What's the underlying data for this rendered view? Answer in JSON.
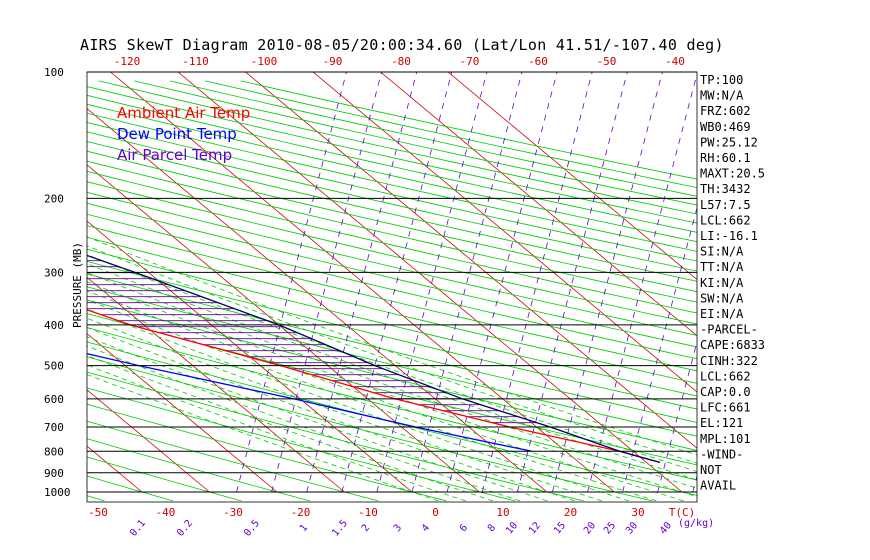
{
  "title": "AIRS SkewT Diagram 2010-08-05/20:00:34.60 (Lat/Lon 41.51/-107.40 deg)",
  "colors": {
    "ambient": "#ff0000",
    "dewpoint": "#0000ff",
    "parcel": "#000066",
    "isotherm": "#cc0000",
    "dry_adiabat": "#00cc00",
    "moist_adiabat": "#00cc00",
    "mixing_ratio": "#6600cc",
    "cape_hatch": "#660099"
  },
  "chart_data": {
    "type": "line",
    "title": "AIRS SkewT Diagram 2010-08-05/20:00:34.60 (Lat/Lon 41.51/-107.40 deg)",
    "ylabel": "PRESSURE (MB)",
    "xlabel": "T(C)",
    "ylim": [
      1000,
      100
    ],
    "y_scale": "log",
    "pressure_ticks": [
      100,
      200,
      300,
      400,
      500,
      600,
      700,
      800,
      900,
      1000
    ],
    "pressure_tick_labels": [
      "100",
      "200",
      "300",
      "400",
      "500",
      "600",
      "700",
      "800",
      "900",
      "1000"
    ],
    "top_temp_ticks": [
      "-120",
      "-110",
      "-100",
      "-90",
      "-80",
      "-70",
      "-60",
      "-50",
      "-40"
    ],
    "bottom_temp_ticks": [
      "-50",
      "-40",
      "-30",
      "-20",
      "-10",
      "0",
      "10",
      "20",
      "30"
    ],
    "mixing_ratio_labels": [
      "0.1",
      "0.2",
      "0.5",
      "1",
      "1.5",
      "2",
      "3",
      "4",
      "6",
      "8",
      "10",
      "12",
      "15",
      "20",
      "25",
      "30",
      "40"
    ],
    "mixing_ratio_unit": "(g/kg)",
    "legend": [
      "Ambient Air Temp",
      "Dew Point Temp",
      "Air Parcel Temp"
    ],
    "legend_position": "top-left",
    "series": [
      {
        "name": "Ambient Air Temp",
        "points": [
          [
            100,
            -61.0
          ],
          [
            130,
            -66.5
          ],
          [
            150,
            -67.0
          ],
          [
            200,
            -62.0
          ],
          [
            250,
            -53.0
          ],
          [
            300,
            -45.0
          ],
          [
            400,
            -32.0
          ],
          [
            500,
            -17.0
          ],
          [
            600,
            -6.0
          ],
          [
            700,
            6.0
          ],
          [
            800,
            18.0
          ],
          [
            850,
            22.0
          ]
        ]
      },
      {
        "name": "Dew Point Temp",
        "points": [
          [
            100,
            -92.0
          ],
          [
            150,
            -92.0
          ],
          [
            200,
            -86.0
          ],
          [
            300,
            -70.0
          ],
          [
            400,
            -57.0
          ],
          [
            500,
            -38.0
          ],
          [
            600,
            -21.0
          ],
          [
            700,
            -8.0
          ],
          [
            800,
            5.0
          ]
        ]
      },
      {
        "name": "Air Parcel Temp",
        "points": [
          [
            100,
            -68.0
          ],
          [
            130,
            -59.0
          ],
          [
            150,
            -52.0
          ],
          [
            200,
            -40.0
          ],
          [
            250,
            -30.0
          ],
          [
            300,
            -22.0
          ],
          [
            400,
            -10.0
          ],
          [
            500,
            -3.0
          ],
          [
            600,
            4.0
          ],
          [
            700,
            12.0
          ],
          [
            800,
            18.0
          ],
          [
            850,
            22.0
          ]
        ]
      }
    ]
  },
  "indices": [
    "TP:100",
    "MW:N/A",
    "FRZ:602",
    "WB0:469",
    "PW:25.12",
    "RH:60.1",
    "MAXT:20.5",
    "TH:3432",
    "L57:7.5",
    "LCL:662",
    "LI:-16.1",
    "SI:N/A",
    "TT:N/A",
    "KI:N/A",
    "SW:N/A",
    "EI:N/A",
    "-PARCEL-",
    "CAPE:6833",
    "CINH:322",
    "LCL:662",
    "CAP:0.0",
    "LFC:661",
    "EL:121",
    "MPL:101",
    "-WIND-",
    "NOT",
    "AVAIL"
  ]
}
